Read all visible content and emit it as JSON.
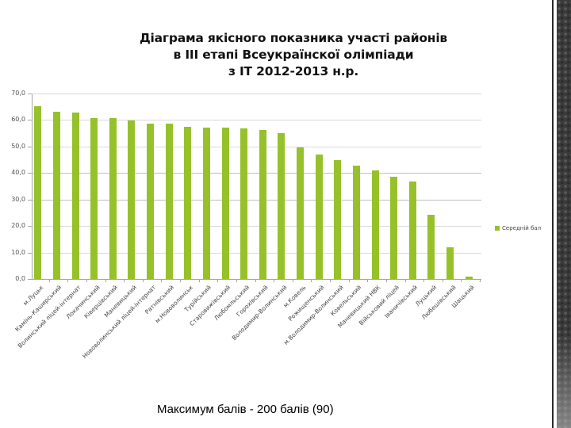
{
  "title": {
    "line1": "Діаграма якісного показника участі районів",
    "line2": "в ІІІ етапі Всеукраїнскої олімпіади",
    "line3": "з ІТ 2012-2013 н.р."
  },
  "footer": {
    "text": "Максимум балів -  200 балів (90)"
  },
  "legend": {
    "label": "Середній бал",
    "color": "#96c12a"
  },
  "yaxis": {
    "ticks": [
      "70,0",
      "60,0",
      "50,0",
      "40,0",
      "30,0",
      "20,0",
      "10,0",
      "0,0"
    ]
  },
  "chart_data": {
    "type": "bar",
    "title": "Діаграма якісного показника участі районів в ІІІ етапі Всеукраїнскої олімпіади з ІТ 2012-2013 н.р.",
    "xlabel": "",
    "ylabel": "",
    "ylim": [
      0,
      70
    ],
    "yticks": [
      0,
      10,
      20,
      30,
      40,
      50,
      60,
      70
    ],
    "grid": true,
    "legend_position": "right",
    "categories": [
      "м.Луцьк",
      "Камінь-Каширський",
      "Волинський ліцей-інтернат",
      "Локачинський",
      "Ківерцівський",
      "Маневицький",
      "Нововолинський ліцей-інтернат",
      "Ратнівський",
      "м.Нововолинськ",
      "Турійський",
      "Старовижівський",
      "Любомльський",
      "Горохівський",
      "Володимир-Волинський",
      "м.Ковель",
      "Рожищенський",
      "м.Володимир-Волинський",
      "Ковельський",
      "Маневицький НВК",
      "Військовий ліцей",
      "Іваничівський",
      "Луцький",
      "Любешівський",
      "Шацький"
    ],
    "series": [
      {
        "name": "Середній бал",
        "color": "#96c12a",
        "values": [
          65.2,
          63.2,
          62.9,
          60.8,
          60.7,
          59.8,
          58.7,
          58.7,
          57.5,
          57.0,
          57.0,
          56.8,
          56.2,
          55.0,
          49.7,
          47.0,
          45.0,
          42.9,
          41.1,
          38.7,
          36.9,
          24.2,
          12.1,
          0.8
        ]
      }
    ]
  }
}
